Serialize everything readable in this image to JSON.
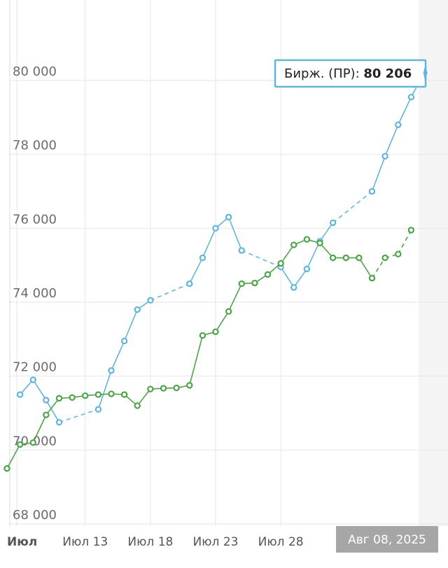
{
  "chart_data": {
    "type": "line",
    "title": "",
    "xlabel": "",
    "ylabel": "",
    "ylim": [
      68000,
      82500
    ],
    "y_ticks": [
      68000,
      70000,
      72000,
      74000,
      76000,
      78000,
      80000
    ],
    "y_tick_labels": [
      "68 000",
      "70 000",
      "72 000",
      "74 000",
      "76 000",
      "78 000",
      "80 000"
    ],
    "x_tick_labels": [
      "Июл",
      "Июл 13",
      "Июл 18",
      "Июл 23",
      "Июл 28"
    ],
    "x_tick_dates": [
      "2025-07-08",
      "2025-07-13",
      "2025-07-18",
      "2025-07-23",
      "2025-07-28"
    ],
    "x_range": [
      "2025-07-07",
      "2025-08-08"
    ],
    "grid": true,
    "legend": "none",
    "series": [
      {
        "color": "#62b5d9",
        "points": [
          {
            "x": "2025-07-08",
            "y": 71500
          },
          {
            "x": "2025-07-09",
            "y": 71900
          },
          {
            "x": "2025-07-10",
            "y": 71350
          },
          {
            "x": "2025-07-11",
            "y": 70750
          },
          {
            "x": "2025-07-14",
            "y": 71100
          },
          {
            "x": "2025-07-15",
            "y": 72150
          },
          {
            "x": "2025-07-16",
            "y": 72950
          },
          {
            "x": "2025-07-17",
            "y": 73800
          },
          {
            "x": "2025-07-18",
            "y": 74050
          },
          {
            "x": "2025-07-21",
            "y": 74500
          },
          {
            "x": "2025-07-22",
            "y": 75200
          },
          {
            "x": "2025-07-23",
            "y": 76000
          },
          {
            "x": "2025-07-24",
            "y": 76300
          },
          {
            "x": "2025-07-25",
            "y": 75400
          },
          {
            "x": "2025-07-28",
            "y": 74950
          },
          {
            "x": "2025-07-29",
            "y": 74400
          },
          {
            "x": "2025-07-30",
            "y": 74900
          },
          {
            "x": "2025-07-31",
            "y": 75650
          },
          {
            "x": "2025-08-01",
            "y": 76150
          },
          {
            "x": "2025-08-04",
            "y": 77000
          },
          {
            "x": "2025-08-05",
            "y": 77950
          },
          {
            "x": "2025-08-06",
            "y": 78800
          },
          {
            "x": "2025-08-07",
            "y": 79550
          },
          {
            "x": "2025-08-08",
            "y": 80206
          }
        ]
      },
      {
        "color": "#4ea34a",
        "points": [
          {
            "x": "2025-07-07",
            "y": 69500
          },
          {
            "x": "2025-07-08",
            "y": 70150
          },
          {
            "x": "2025-07-09",
            "y": 70200
          },
          {
            "x": "2025-07-10",
            "y": 70950
          },
          {
            "x": "2025-07-11",
            "y": 71400
          },
          {
            "x": "2025-07-12",
            "y": 71420
          },
          {
            "x": "2025-07-13",
            "y": 71470
          },
          {
            "x": "2025-07-14",
            "y": 71500
          },
          {
            "x": "2025-07-15",
            "y": 71520
          },
          {
            "x": "2025-07-16",
            "y": 71500
          },
          {
            "x": "2025-07-17",
            "y": 71200
          },
          {
            "x": "2025-07-18",
            "y": 71650
          },
          {
            "x": "2025-07-19",
            "y": 71670
          },
          {
            "x": "2025-07-20",
            "y": 71680
          },
          {
            "x": "2025-07-21",
            "y": 71750
          },
          {
            "x": "2025-07-22",
            "y": 73100
          },
          {
            "x": "2025-07-23",
            "y": 73200
          },
          {
            "x": "2025-07-24",
            "y": 73750
          },
          {
            "x": "2025-07-25",
            "y": 74500
          },
          {
            "x": "2025-07-26",
            "y": 74520
          },
          {
            "x": "2025-07-27",
            "y": 74750
          },
          {
            "x": "2025-07-28",
            "y": 75050
          },
          {
            "x": "2025-07-29",
            "y": 75550
          },
          {
            "x": "2025-07-30",
            "y": 75700
          },
          {
            "x": "2025-07-31",
            "y": 75600
          },
          {
            "x": "2025-08-01",
            "y": 75200
          },
          {
            "x": "2025-08-02",
            "y": 75200
          },
          {
            "x": "2025-08-03",
            "y": 75200
          },
          {
            "x": "2025-08-04",
            "y": 74650
          },
          {
            "x": "2025-08-05",
            "y": 75200
          },
          {
            "x": "2025-08-06",
            "y": 75300
          },
          {
            "x": "2025-08-07",
            "y": 75950
          }
        ]
      }
    ],
    "tooltip": {
      "label": "Бирж. (ПР):",
      "value": "80 206",
      "date": "Авг 08, 2025"
    }
  }
}
